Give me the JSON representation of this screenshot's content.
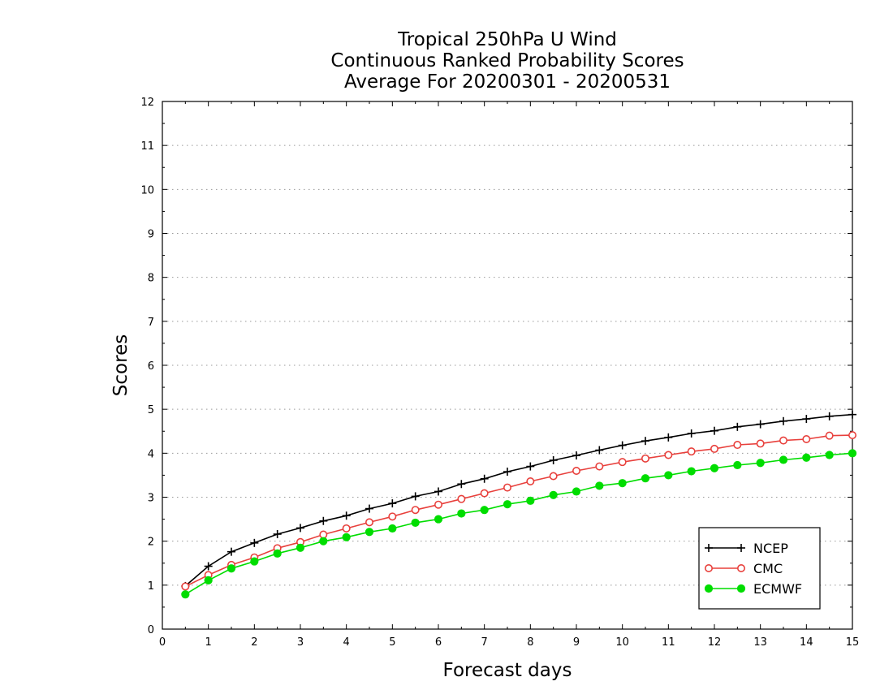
{
  "chart_data": {
    "type": "line",
    "title_lines": [
      "Tropical 250hPa U Wind",
      "Continuous Ranked Probability Scores",
      "Average For 20200301 - 20200531"
    ],
    "xlabel": "Forecast days",
    "ylabel": "Scores",
    "xlim": [
      0,
      15
    ],
    "ylim": [
      0,
      12
    ],
    "x_ticks": [
      0,
      1,
      2,
      3,
      4,
      5,
      6,
      7,
      8,
      9,
      10,
      11,
      12,
      13,
      14,
      15
    ],
    "y_ticks": [
      0,
      1,
      2,
      3,
      4,
      5,
      6,
      7,
      8,
      9,
      10,
      11,
      12
    ],
    "grid": "horizontal dotted",
    "legend_position": "bottom-right",
    "x": [
      0.5,
      1,
      1.5,
      2,
      2.5,
      3,
      3.5,
      4,
      4.5,
      5,
      5.5,
      6,
      6.5,
      7,
      7.5,
      8,
      8.5,
      9,
      9.5,
      10,
      10.5,
      11,
      11.5,
      12,
      12.5,
      13,
      13.5,
      14,
      14.5,
      15
    ],
    "series": [
      {
        "name": "NCEP",
        "color": "#000000",
        "marker": "plus",
        "values": [
          0.98,
          1.43,
          1.76,
          1.96,
          2.16,
          2.3,
          2.46,
          2.58,
          2.74,
          2.86,
          3.02,
          3.13,
          3.3,
          3.42,
          3.58,
          3.7,
          3.84,
          3.95,
          4.07,
          4.18,
          4.28,
          4.36,
          4.45,
          4.51,
          4.6,
          4.66,
          4.73,
          4.78,
          4.84,
          4.88
        ]
      },
      {
        "name": "CMC",
        "color": "#e8403c",
        "marker": "open-circle",
        "values": [
          0.97,
          1.23,
          1.46,
          1.63,
          1.84,
          1.98,
          2.15,
          2.29,
          2.43,
          2.56,
          2.71,
          2.83,
          2.96,
          3.09,
          3.22,
          3.36,
          3.48,
          3.6,
          3.7,
          3.8,
          3.88,
          3.96,
          4.04,
          4.1,
          4.19,
          4.22,
          4.29,
          4.32,
          4.4,
          4.41
        ]
      },
      {
        "name": "ECMWF",
        "color": "#00dd00",
        "marker": "filled-circle",
        "values": [
          0.79,
          1.11,
          1.38,
          1.54,
          1.72,
          1.85,
          2.0,
          2.09,
          2.21,
          2.29,
          2.42,
          2.5,
          2.63,
          2.71,
          2.84,
          2.92,
          3.05,
          3.13,
          3.26,
          3.32,
          3.43,
          3.5,
          3.59,
          3.66,
          3.73,
          3.78,
          3.85,
          3.9,
          3.96,
          4.0
        ]
      }
    ]
  }
}
